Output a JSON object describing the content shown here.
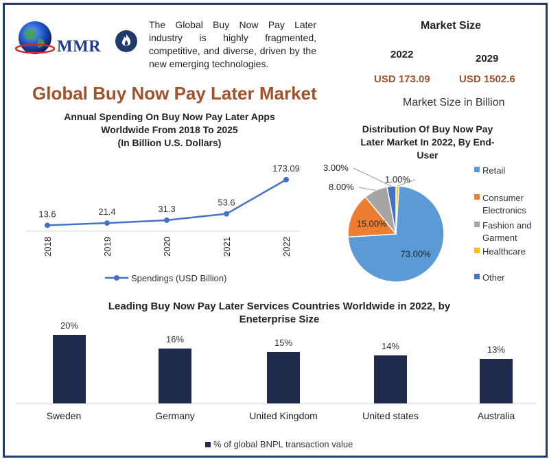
{
  "header": {
    "logo_text": "MMR",
    "intro_text": "The Global Buy Now Pay Later industry is highly fragmented, competitive, and diverse, driven by the new emerging technologies.",
    "main_title": "Global Buy Now Pay Later Market"
  },
  "market_size": {
    "title": "Market Size",
    "year_a": "2022",
    "year_b": "2029",
    "value_a": "USD 173.09",
    "value_b": "USD 1502.6",
    "note": "Market Size in Billion"
  },
  "colors": {
    "line": "#4472c4",
    "bar": "#1f2a4d",
    "title_brown": "#a0522d",
    "pie_retail": "#5b9bd5",
    "pie_consumer": "#ed7d31",
    "pie_fashion": "#a5a5a5",
    "pie_healthcare": "#ffc000",
    "pie_other": "#4472c4"
  },
  "chart_data": [
    {
      "type": "line",
      "title_lines": [
        "Annual Spending On Buy Now Pay Later Apps",
        "Worldwide  From 2018 To 2025",
        "(In Billion U.S. Dollars)"
      ],
      "x": [
        "2018",
        "2019",
        "2020",
        "2021",
        "2022"
      ],
      "series": [
        {
          "name": "Spendings (USD Billion)",
          "values": [
            13.6,
            21.4,
            31.3,
            53.6,
            173.09
          ]
        }
      ],
      "data_labels": [
        "13.6",
        "21.4",
        "31.3",
        "53.6",
        "173.09"
      ],
      "ylim": [
        0,
        180
      ],
      "grid": false,
      "legend_position": "bottom"
    },
    {
      "type": "pie",
      "title_lines": [
        "Distribution Of Buy Now Pay",
        "Later Market In 2022, By End-",
        "User"
      ],
      "labels": [
        "Retail",
        "Consumer Electronics",
        "Fashion and Garment",
        "Healthcare",
        "Other"
      ],
      "legend_lines": [
        [
          "Retail"
        ],
        [
          "Consumer",
          "Electronics"
        ],
        [
          "Fashion and",
          "Garment"
        ],
        [
          "Healthcare"
        ],
        [
          "Other"
        ]
      ],
      "values": [
        73,
        15,
        8,
        1,
        3
      ],
      "data_labels": [
        "73.00%",
        "15.00%",
        "8.00%",
        "1.00%",
        "3.00%"
      ],
      "legend_position": "right"
    },
    {
      "type": "bar",
      "title_lines": [
        "Leading Buy Now Pay Later Services Countries Worldwide in 2022, by",
        "Eneterprise Size"
      ],
      "categories": [
        "Sweden",
        "Germany",
        "United Kingdom",
        "United states",
        "Australia"
      ],
      "series": [
        {
          "name": "% of global BNPL transaction value",
          "values": [
            20,
            16,
            15,
            14,
            13
          ]
        }
      ],
      "data_labels": [
        "20%",
        "16%",
        "15%",
        "14%",
        "13%"
      ],
      "ylim": [
        0,
        20
      ],
      "grid": false,
      "legend_position": "bottom"
    }
  ]
}
